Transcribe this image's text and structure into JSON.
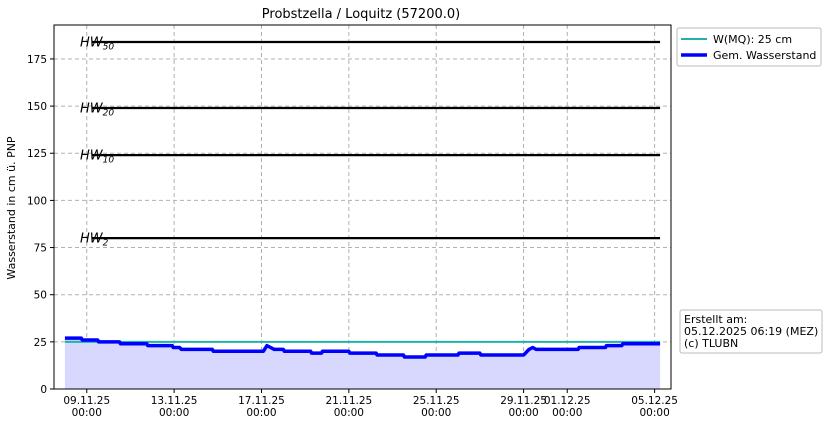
{
  "chart_data": {
    "type": "line",
    "title": "Probstzella / Loquitz (57200.0)",
    "ylabel": "Wasserstand in cm ü. PNP",
    "xlabel": "",
    "ylim": [
      0,
      193
    ],
    "yticks": [
      0,
      25,
      50,
      75,
      100,
      125,
      150,
      175
    ],
    "x_range_days": [
      "2025-11-07 12:00",
      "2025-12-05 18:00"
    ],
    "xticks": [
      {
        "date": "2025-11-09 00:00",
        "label1": "09.11.25",
        "label2": "00:00"
      },
      {
        "date": "2025-11-13 00:00",
        "label1": "13.11.25",
        "label2": "00:00"
      },
      {
        "date": "2025-11-17 00:00",
        "label1": "17.11.25",
        "label2": "00:00"
      },
      {
        "date": "2025-11-21 00:00",
        "label1": "21.11.25",
        "label2": "00:00"
      },
      {
        "date": "2025-11-25 00:00",
        "label1": "25.11.25",
        "label2": "00:00"
      },
      {
        "date": "2025-11-29 00:00",
        "label1": "29.11.25",
        "label2": "00:00"
      },
      {
        "date": "2025-12-01 00:00",
        "label1": "01.12.25",
        "label2": "00:00"
      },
      {
        "date": "2025-12-05 00:00",
        "label1": "05.12.25",
        "label2": "00:00"
      }
    ],
    "grid": true,
    "thresholds": [
      {
        "base": "HW",
        "sub": "50",
        "value": 184,
        "x_start": "2025-11-09 06:00",
        "x_end": "2025-12-05 06:00"
      },
      {
        "base": "HW",
        "sub": "20",
        "value": 149,
        "x_start": "2025-11-09 06:00",
        "x_end": "2025-12-05 06:00"
      },
      {
        "base": "HW",
        "sub": "10",
        "value": 124,
        "x_start": "2025-11-09 06:00",
        "x_end": "2025-12-05 06:00"
      },
      {
        "base": "HW",
        "sub": "2",
        "value": 80,
        "x_start": "2025-11-09 06:00",
        "x_end": "2025-12-05 06:00"
      }
    ],
    "mq_line": {
      "value": 25,
      "x_start": "2025-11-08 00:00",
      "x_end": "2025-12-05 06:00",
      "color": "#20b2aa"
    },
    "series": [
      {
        "name": "Gem. Wasserstand",
        "color": "#0000ff",
        "fill": "#d8d8ff",
        "points": [
          [
            "2025-11-08 00:00",
            27
          ],
          [
            "2025-11-08 18:00",
            27
          ],
          [
            "2025-11-08 19:00",
            26
          ],
          [
            "2025-11-09 12:00",
            26
          ],
          [
            "2025-11-09 13:00",
            25
          ],
          [
            "2025-11-10 12:00",
            25
          ],
          [
            "2025-11-10 13:00",
            24
          ],
          [
            "2025-11-11 18:00",
            24
          ],
          [
            "2025-11-11 19:00",
            23
          ],
          [
            "2025-11-12 22:00",
            23
          ],
          [
            "2025-11-12 23:00",
            22
          ],
          [
            "2025-11-13 06:00",
            22
          ],
          [
            "2025-11-13 08:00",
            21
          ],
          [
            "2025-11-14 18:00",
            21
          ],
          [
            "2025-11-14 19:00",
            20
          ],
          [
            "2025-11-17 02:00",
            20
          ],
          [
            "2025-11-17 06:00",
            23
          ],
          [
            "2025-11-17 10:00",
            22
          ],
          [
            "2025-11-17 14:00",
            21
          ],
          [
            "2025-11-18 00:00",
            21
          ],
          [
            "2025-11-18 01:00",
            20
          ],
          [
            "2025-11-19 06:00",
            20
          ],
          [
            "2025-11-19 07:00",
            19
          ],
          [
            "2025-11-19 18:00",
            19
          ],
          [
            "2025-11-19 19:00",
            20
          ],
          [
            "2025-11-21 00:00",
            20
          ],
          [
            "2025-11-21 01:00",
            19
          ],
          [
            "2025-11-22 06:00",
            19
          ],
          [
            "2025-11-22 07:00",
            18
          ],
          [
            "2025-11-23 12:00",
            18
          ],
          [
            "2025-11-23 13:00",
            17
          ],
          [
            "2025-11-24 12:00",
            17
          ],
          [
            "2025-11-24 13:00",
            18
          ],
          [
            "2025-11-26 00:00",
            18
          ],
          [
            "2025-11-26 01:00",
            19
          ],
          [
            "2025-11-27 00:00",
            19
          ],
          [
            "2025-11-27 01:00",
            18
          ],
          [
            "2025-11-29 00:00",
            18
          ],
          [
            "2025-11-29 06:00",
            21
          ],
          [
            "2025-11-29 10:00",
            22
          ],
          [
            "2025-11-29 14:00",
            21
          ],
          [
            "2025-12-01 12:00",
            21
          ],
          [
            "2025-12-01 13:00",
            22
          ],
          [
            "2025-12-02 18:00",
            22
          ],
          [
            "2025-12-02 19:00",
            23
          ],
          [
            "2025-12-03 12:00",
            23
          ],
          [
            "2025-12-03 13:00",
            24
          ],
          [
            "2025-12-05 06:00",
            24
          ]
        ]
      }
    ],
    "legend": {
      "placement": "upper-right-outside",
      "entries": [
        {
          "label": "W(MQ): 25 cm",
          "color": "#20b2aa",
          "weight": "thin"
        },
        {
          "label": "Gem. Wasserstand",
          "color": "#0000ff",
          "weight": "thick"
        }
      ]
    },
    "info_box": {
      "lines": [
        "Erstellt am:",
        "05.12.2025 06:19 (MEZ)",
        "(c) TLUBN"
      ]
    }
  }
}
